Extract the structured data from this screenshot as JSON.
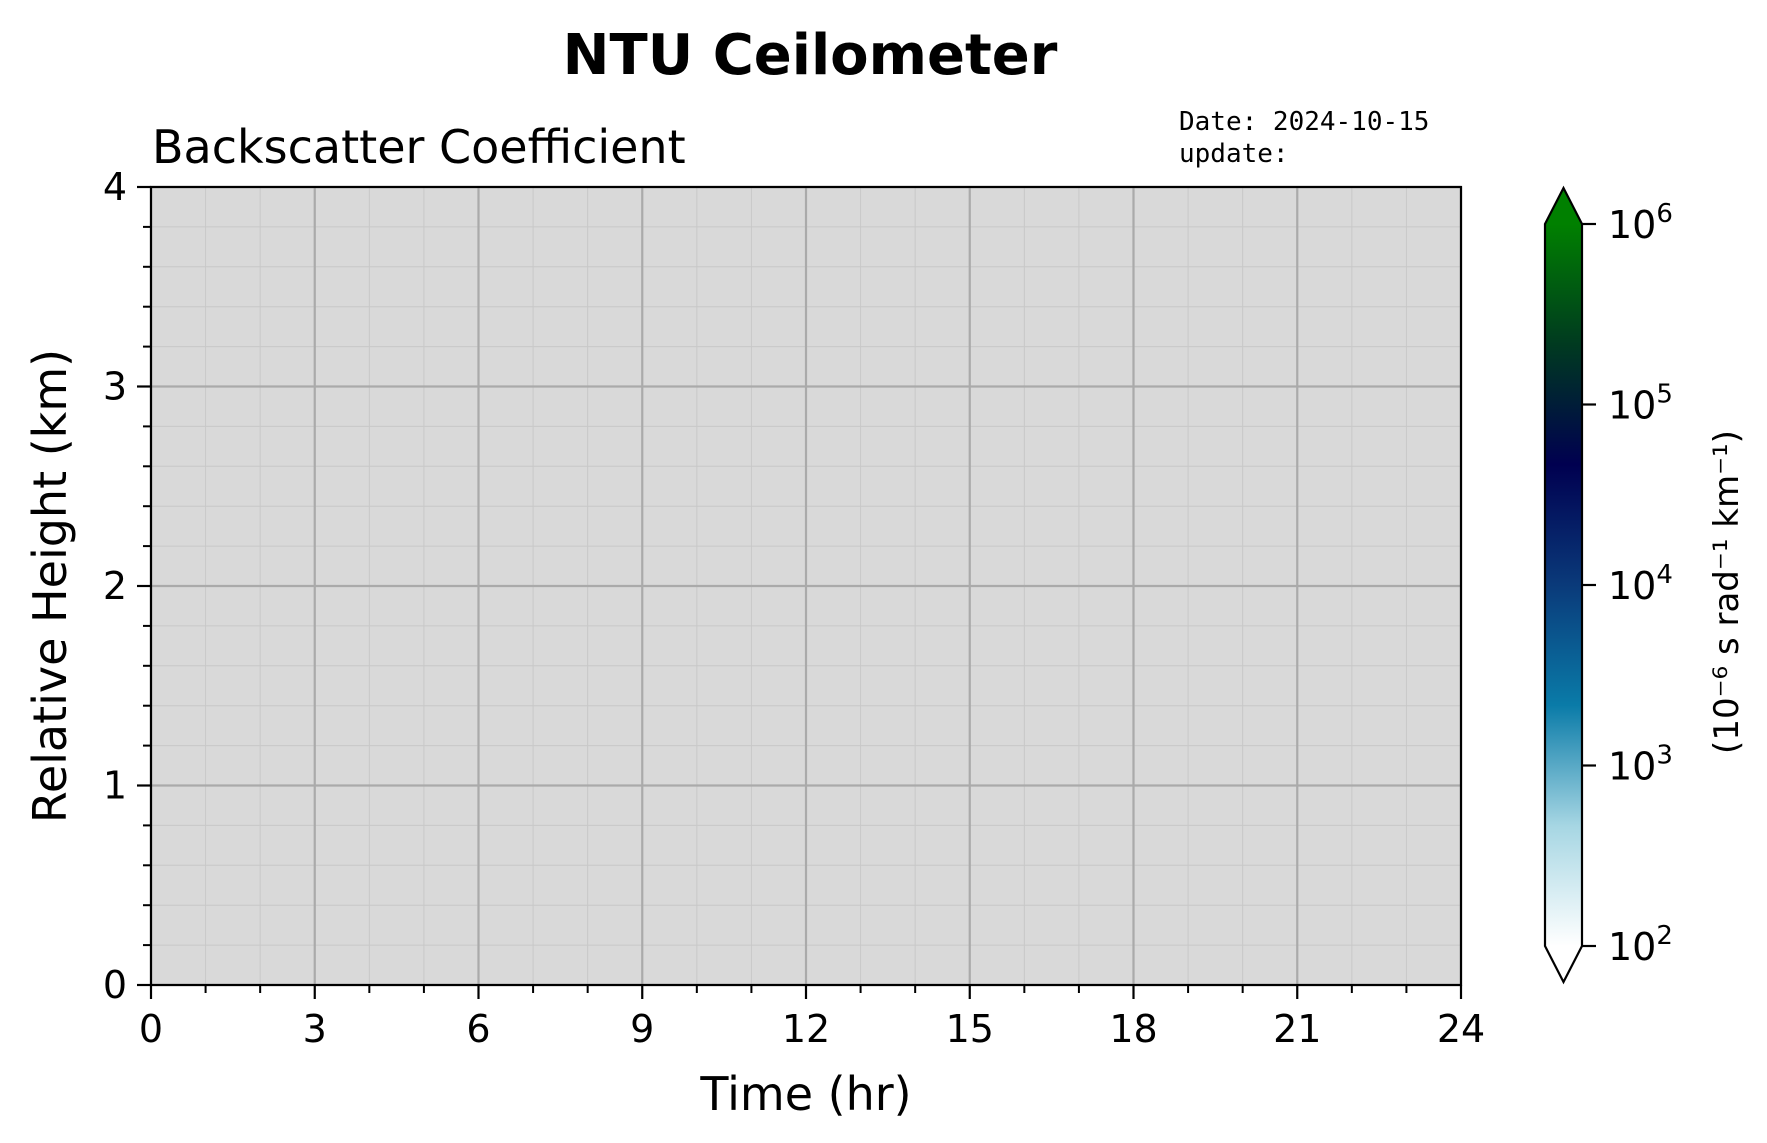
{
  "chart_data": {
    "type": "heatmap",
    "title": "NTU Ceilometer",
    "subtitle": "Backscatter Coefficient",
    "date_text": "Date: 2024-10-15",
    "update_text": "update:",
    "xlabel": "Time (hr)",
    "ylabel": "Relative Height (km)",
    "xlim": [
      0,
      24
    ],
    "ylim": [
      0,
      4
    ],
    "x_ticks": [
      0,
      3,
      6,
      9,
      12,
      15,
      18,
      21,
      24
    ],
    "y_ticks": [
      0,
      1,
      2,
      3,
      4
    ],
    "x_tick_labels": [
      "0",
      "3",
      "6",
      "9",
      "12",
      "15",
      "18",
      "21",
      "24"
    ],
    "y_tick_labels": [
      "0",
      "1",
      "2",
      "3",
      "4"
    ],
    "grid": true,
    "minor_grid": true,
    "data": [],
    "background_color": "#d9d9d9",
    "colorbar": {
      "scale": "log",
      "range": [
        100,
        1000000
      ],
      "extend": "both",
      "label": "(10⁻⁶ s rad⁻¹ km⁻¹)",
      "tick_labels": [
        {
          "base": "10",
          "exp": "2",
          "value": 100
        },
        {
          "base": "10",
          "exp": "3",
          "value": 1000
        },
        {
          "base": "10",
          "exp": "4",
          "value": 10000
        },
        {
          "base": "10",
          "exp": "5",
          "value": 100000
        },
        {
          "base": "10",
          "exp": "6",
          "value": 1000000
        }
      ],
      "colors": [
        "#ffffff",
        "#a6d6e3",
        "#0a7ba8",
        "#0a3a7a",
        "#000050",
        "#003a20",
        "#008000"
      ],
      "under_color": "#ffffff",
      "over_color": "#008000"
    }
  }
}
